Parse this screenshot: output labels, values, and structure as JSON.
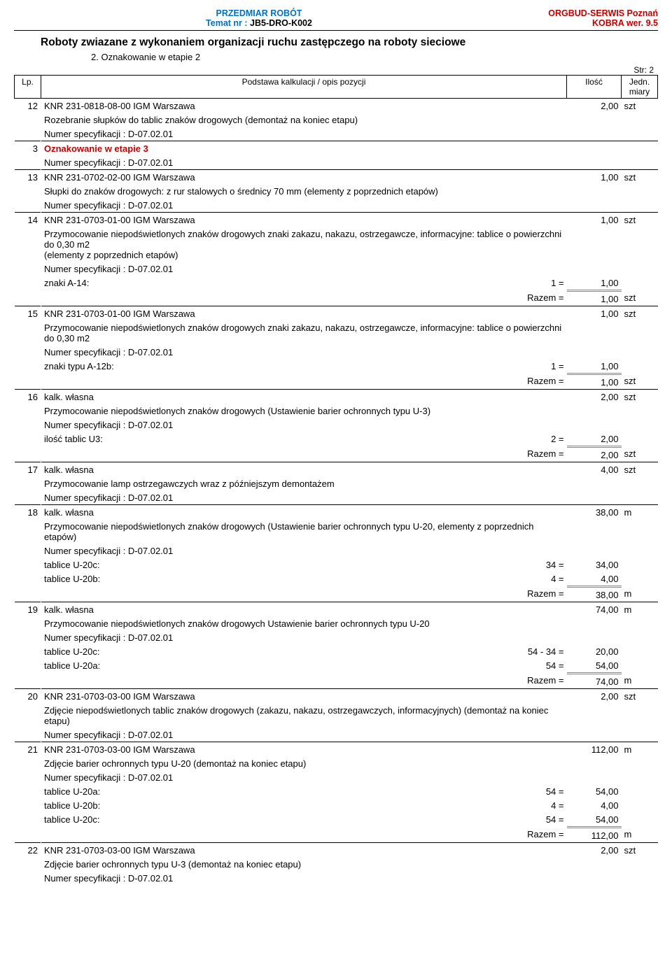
{
  "header": {
    "przedmiar": "PRZEDMIAR  ROBÓT",
    "temat_label": "Temat nr : ",
    "temat_value": "JB5-DRO-K002",
    "org": "ORGBUD-SERWIS Poznań",
    "kobra": "KOBRA wer. 9.5"
  },
  "title": "Roboty zwiazane z wykonaniem organizacji ruchu zastępczego na roboty sieciowe",
  "subtitle": "2. Oznakowanie w etapie 2",
  "page": "Str: 2",
  "thead": {
    "lp": "Lp.",
    "desc": "Podstawa kalkulacji / opis pozycji",
    "qty": "Ilość",
    "unit": "Jedn. miary"
  },
  "spec_label": "Numer specyfikacji :  D-07.02.01",
  "razem": "Razem   =",
  "rows": [
    {
      "lp": "12",
      "title": "KNR 231-0818-08-00 IGM Warszawa",
      "qty": "2,00",
      "unit": "szt",
      "desc": "Rozebranie słupków do tablic znaków drogowych  (demontaż na koniec etapu)",
      "calcs": [],
      "sum_qty": null,
      "sum_unit": null,
      "topborder": true
    },
    {
      "lp": "3",
      "title": "Oznakowanie w etapie 3",
      "qty": "",
      "unit": "",
      "red": true,
      "desc": null,
      "calcs": [],
      "sum_qty": null,
      "sum_unit": null,
      "topborder": true
    },
    {
      "lp": "13",
      "title": "KNR 231-0702-02-00 IGM Warszawa",
      "qty": "1,00",
      "unit": "szt",
      "desc": "Słupki do znaków drogowych: z rur stalowych o średnicy 70 mm  (elementy z poprzednich etapów)",
      "calcs": [],
      "sum_qty": null,
      "sum_unit": null,
      "topborder": true
    },
    {
      "lp": "14",
      "title": "KNR 231-0703-01-00 IGM Warszawa",
      "qty": "1,00",
      "unit": "szt",
      "desc": "Przymocowanie niepodświetlonych znaków drogowych znaki zakazu, nakazu, ostrzegawcze, informacyjne: tablice o powierzchni do 0,30 m2\n(elementy z poprzednich etapów)",
      "calcs": [
        {
          "label": "znaki  A-14:",
          "eq": "1 =",
          "val": "1,00"
        }
      ],
      "sum_qty": "1,00",
      "sum_unit": "szt",
      "topborder": true
    },
    {
      "lp": "15",
      "title": "KNR 231-0703-01-00 IGM Warszawa",
      "qty": "1,00",
      "unit": "szt",
      "desc": "Przymocowanie niepodświetlonych znaków drogowych znaki zakazu, nakazu, ostrzegawcze, informacyjne: tablice o powierzchni do 0,30 m2",
      "calcs": [
        {
          "label": "znaki typu A-12b:",
          "eq": "1 =",
          "val": "1,00"
        }
      ],
      "sum_qty": "1,00",
      "sum_unit": "szt",
      "topborder": true
    },
    {
      "lp": "16",
      "title": "kalk. własna",
      "qty": "2,00",
      "unit": "szt",
      "desc": "Przymocowanie niepodświetlonych znaków drogowych   (Ustawienie barier ochronnych typu U-3)",
      "calcs": [
        {
          "label": "ilość tablic U3:",
          "eq": "2 =",
          "val": "2,00"
        }
      ],
      "sum_qty": "2,00",
      "sum_unit": "szt",
      "topborder": true
    },
    {
      "lp": "17",
      "title": "kalk. własna",
      "qty": "4,00",
      "unit": "szt",
      "desc": "Przymocowanie lamp ostrzegawczych wraz z późniejszym demontażem",
      "calcs": [],
      "sum_qty": null,
      "sum_unit": null,
      "topborder": true
    },
    {
      "lp": "18",
      "title": "kalk. własna",
      "qty": "38,00",
      "unit": "m",
      "desc": "Przymocowanie niepodświetlonych znaków drogowych  (Ustawienie barier ochronnych typu U-20, elementy z poprzednich etapów)",
      "calcs": [
        {
          "label": "tablice U-20c:",
          "eq": "34 =",
          "val": "34,00"
        },
        {
          "label": "tablice U-20b:",
          "eq": "4 =",
          "val": "4,00"
        }
      ],
      "sum_qty": "38,00",
      "sum_unit": "m",
      "topborder": true
    },
    {
      "lp": "19",
      "title": "kalk. własna",
      "qty": "74,00",
      "unit": "m",
      "desc": "Przymocowanie niepodświetlonych znaków drogowych  Ustawienie barier ochronnych typu U-20",
      "calcs": [
        {
          "label": "tablice U-20c:",
          "eq": "54 - 34 =",
          "val": "20,00"
        },
        {
          "label": "tablice U-20a:",
          "eq": "54 =",
          "val": "54,00"
        }
      ],
      "sum_qty": "74,00",
      "sum_unit": "m",
      "topborder": true
    },
    {
      "lp": "20",
      "title": "KNR 231-0703-03-00 IGM Warszawa",
      "qty": "2,00",
      "unit": "szt",
      "desc": "Zdjęcie niepodświetlonych tablic znaków drogowych (zakazu, nakazu, ostrzegawczych, informacyjnych)  (demontaż na koniec etapu)",
      "calcs": [],
      "sum_qty": null,
      "sum_unit": null,
      "topborder": true
    },
    {
      "lp": "21",
      "title": "KNR 231-0703-03-00 IGM Warszawa",
      "qty": "112,00",
      "unit": "m",
      "desc": "Zdjęcie barier ochronnych typu U-20  (demontaż na koniec etapu)",
      "calcs": [
        {
          "label": "tablice U-20a:",
          "eq": "54 =",
          "val": "54,00"
        },
        {
          "label": "tablice U-20b:",
          "eq": "4 =",
          "val": "4,00"
        },
        {
          "label": "tablice U-20c:",
          "eq": "54 =",
          "val": "54,00"
        }
      ],
      "sum_qty": "112,00",
      "sum_unit": "m",
      "topborder": true
    },
    {
      "lp": "22",
      "title": "KNR 231-0703-03-00 IGM Warszawa",
      "qty": "2,00",
      "unit": "szt",
      "desc": "Zdjęcie barier ochronnych typu U-3  (demontaż na koniec etapu)",
      "calcs": [],
      "sum_qty": null,
      "sum_unit": null,
      "topborder": true
    }
  ],
  "colors": {
    "blue": "#0070c0",
    "red": "#c00000",
    "text": "#000000",
    "bg": "#ffffff",
    "rule": "#888888"
  }
}
